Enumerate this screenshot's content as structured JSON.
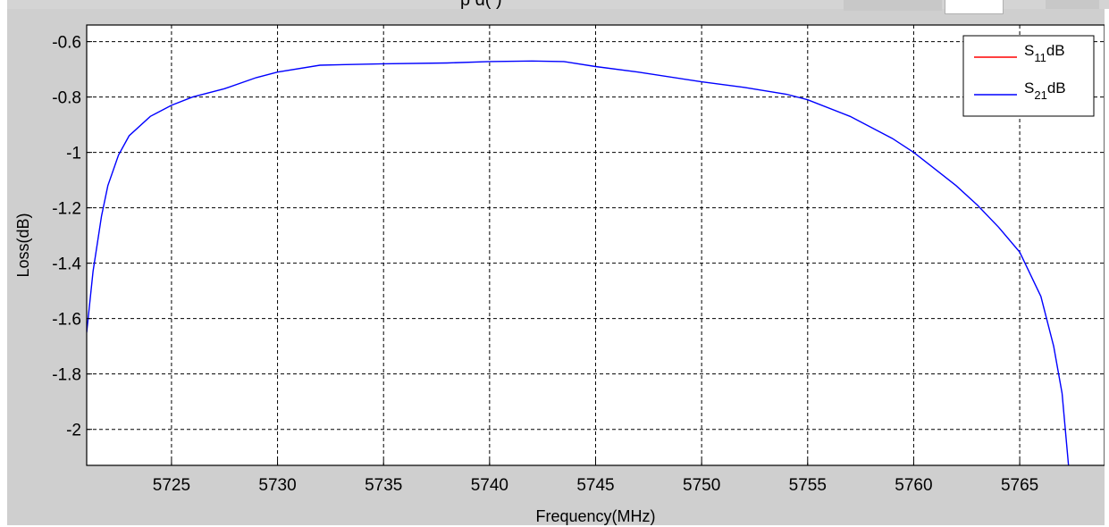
{
  "window": {
    "top_fragment": "p                 d(             )"
  },
  "chart_data": {
    "type": "line",
    "title": "",
    "xlabel": "Frequency(MHz)",
    "ylabel": "Loss(dB)",
    "xlim": [
      5721,
      5769
    ],
    "ylim": [
      -2.13,
      -0.54
    ],
    "xticks": [
      5725,
      5730,
      5735,
      5740,
      5745,
      5750,
      5755,
      5760,
      5765
    ],
    "yticks": [
      -0.6,
      -0.8,
      -1,
      -1.2,
      -1.4,
      -1.6,
      -1.8,
      -2
    ],
    "ytick_labels": [
      "-0.6",
      "-0.8",
      "-1",
      "-1.2",
      "-1.4",
      "-1.6",
      "-1.8",
      "-2"
    ],
    "grid": true,
    "legend_placement": "top-right",
    "series": [
      {
        "name": "S11dB",
        "label_base": "S",
        "label_sub": "11",
        "label_suffix": "dB",
        "color": "#ff0000",
        "x": [],
        "y": []
      },
      {
        "name": "S21dB",
        "label_base": "S",
        "label_sub": "21",
        "label_suffix": "dB",
        "color": "#0000ff",
        "x": [
          5721.0,
          5721.3,
          5721.7,
          5722.0,
          5722.5,
          5723.0,
          5724.0,
          5725.0,
          5726.0,
          5727.5,
          5729.0,
          5730.0,
          5732.0,
          5735.0,
          5738.0,
          5740.0,
          5742.0,
          5743.5,
          5745.0,
          5747.0,
          5750.0,
          5752.0,
          5754.0,
          5755.0,
          5757.0,
          5759.0,
          5760.0,
          5761.0,
          5762.0,
          5763.0,
          5764.0,
          5765.0,
          5766.0,
          5766.6,
          5767.0,
          5767.3
        ],
        "y": [
          -1.65,
          -1.43,
          -1.23,
          -1.12,
          -1.01,
          -0.94,
          -0.87,
          -0.83,
          -0.8,
          -0.77,
          -0.73,
          -0.71,
          -0.685,
          -0.68,
          -0.677,
          -0.672,
          -0.67,
          -0.672,
          -0.69,
          -0.71,
          -0.745,
          -0.765,
          -0.79,
          -0.81,
          -0.87,
          -0.95,
          -1.0,
          -1.06,
          -1.12,
          -1.19,
          -1.27,
          -1.36,
          -1.52,
          -1.7,
          -1.87,
          -2.13
        ]
      }
    ]
  }
}
